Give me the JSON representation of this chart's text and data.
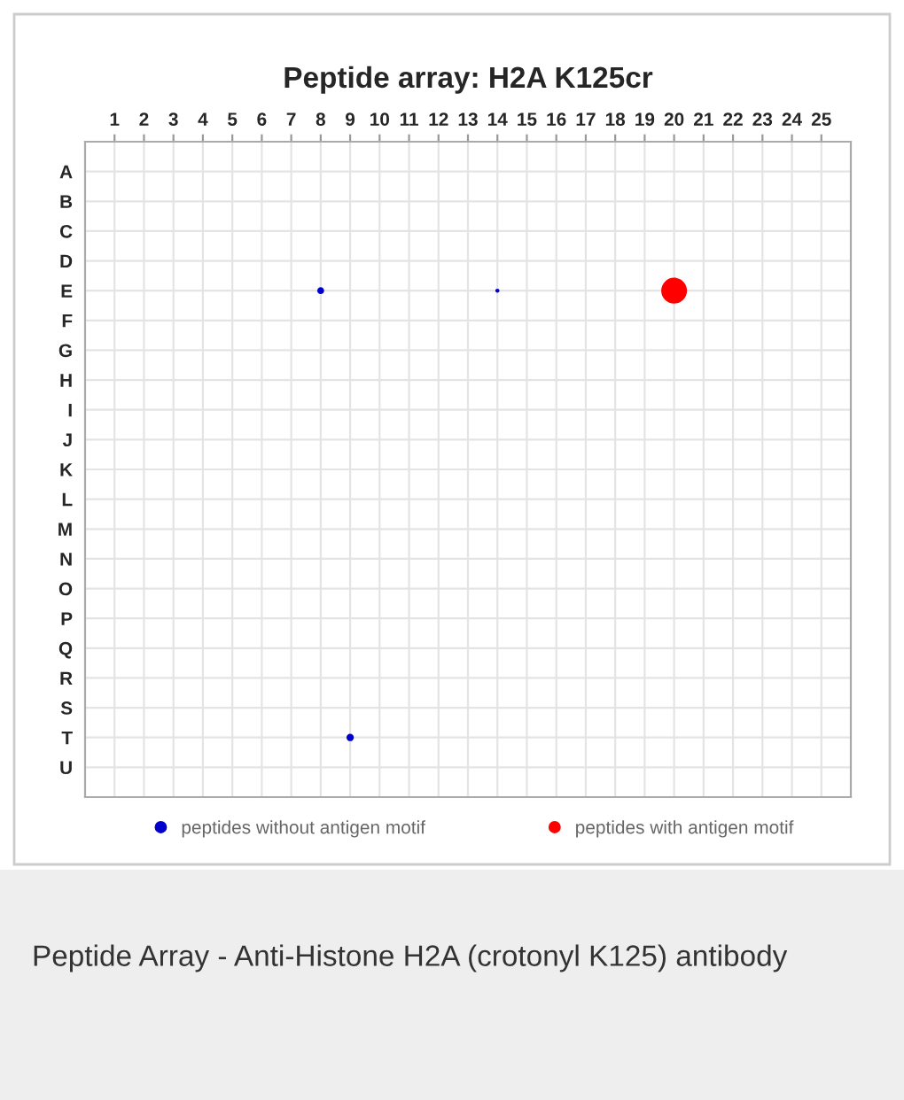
{
  "chart_data": {
    "type": "bubble",
    "title": "Peptide array: H2A K125cr",
    "orientation": "horizontal",
    "categories": [
      "A",
      "B",
      "C",
      "D",
      "E",
      "F",
      "G",
      "H",
      "I",
      "J",
      "K",
      "L",
      "M",
      "N",
      "O",
      "P",
      "Q",
      "R",
      "S",
      "T",
      "U"
    ],
    "xlim": [
      0,
      26
    ],
    "xticks": [
      1,
      2,
      3,
      4,
      5,
      6,
      7,
      8,
      9,
      10,
      11,
      12,
      13,
      14,
      15,
      16,
      17,
      18,
      19,
      20,
      21,
      22,
      23,
      24,
      25
    ],
    "series": [
      {
        "name": "peptides without antigen motif",
        "color": "#0000cc",
        "values": [
          null,
          null,
          null,
          null,
          8,
          null,
          null,
          null,
          null,
          null,
          null,
          null,
          null,
          null,
          null,
          null,
          null,
          null,
          null,
          9,
          null
        ],
        "sizes": [
          null,
          null,
          null,
          null,
          0.07,
          null,
          null,
          null,
          null,
          null,
          null,
          null,
          null,
          null,
          null,
          null,
          null,
          null,
          null,
          0.08,
          null
        ]
      },
      {
        "color": "#0000cc",
        "values": [
          null,
          null,
          null,
          null,
          14,
          null,
          null,
          null,
          null,
          null,
          null,
          null,
          null,
          null,
          null,
          null,
          null,
          null,
          null,
          null,
          null
        ],
        "sizes": [
          null,
          null,
          null,
          null,
          0.025,
          null,
          null,
          null,
          null,
          null,
          null,
          null,
          null,
          null,
          null,
          null,
          null,
          null,
          null,
          null,
          null
        ]
      },
      {
        "name": "peptides with antigen motif",
        "color": "#ff0000",
        "values": [
          null,
          null,
          null,
          null,
          20,
          null,
          null,
          null,
          null,
          null,
          null,
          null,
          null,
          null,
          null,
          null,
          null,
          null,
          null,
          null,
          null
        ],
        "sizes": [
          null,
          null,
          null,
          null,
          1,
          null,
          null,
          null,
          null,
          null,
          null,
          null,
          null,
          null,
          null,
          null,
          null,
          null,
          null,
          null,
          null
        ]
      }
    ],
    "grid": true,
    "legend": "bottom",
    "marker": "circle",
    "annotations": [
      "Peptide Array - Anti-Histone H2A (crotonyl K125) antibody"
    ]
  }
}
